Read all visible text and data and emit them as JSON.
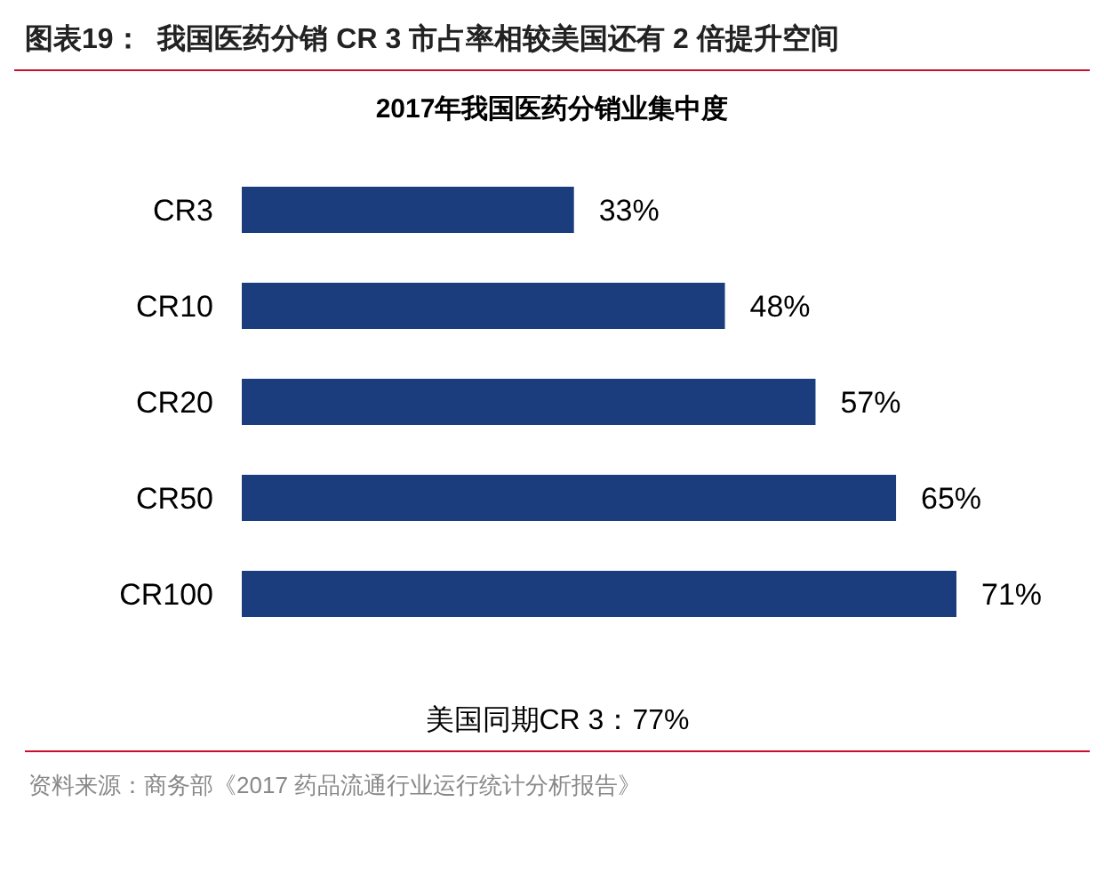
{
  "chart_data": {
    "type": "bar",
    "orientation": "horizontal",
    "title": "图表19：  我国医药分销 CR 3 市占率相较美国还有 2 倍提升空间",
    "subtitle": "2017年我国医药分销业集中度",
    "categories": [
      "CR3",
      "CR10",
      "CR20",
      "CR50",
      "CR100"
    ],
    "values": [
      33,
      48,
      57,
      65,
      71
    ],
    "value_labels": [
      "33%",
      "48%",
      "57%",
      "65%",
      "71%"
    ],
    "color": "#1b3d7e",
    "annotations": [
      "美国同期CR 3：77%",
      "资料来源：商务部《2017 药品流通行业运行统计分析报告》"
    ]
  }
}
